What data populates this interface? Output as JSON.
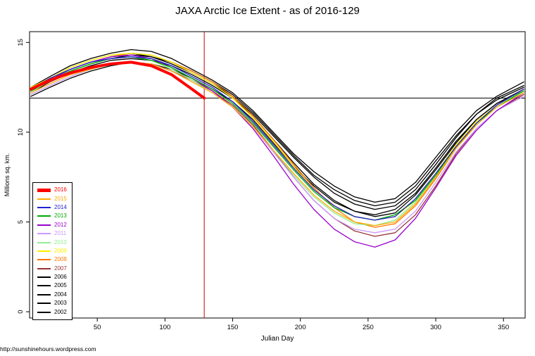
{
  "page": {
    "title": "JAXA Arctic Ice Extent - as of 2016-129",
    "footer_url": "http://sunshinehours.wordpress.com"
  },
  "chart_data": {
    "type": "line",
    "title": "JAXA Arctic Ice Extent - as of 2016-129",
    "xlabel": "Julian Day",
    "ylabel": "Millions sq. km.",
    "xlim": [
      0,
      366
    ],
    "ylim": [
      0,
      15
    ],
    "x_ticks": [
      50,
      100,
      150,
      200,
      250,
      300,
      350
    ],
    "y_ticks": [
      0,
      5,
      10,
      15
    ],
    "grid": false,
    "legend_position": "left-bottom",
    "reference_lines": {
      "horizontal_y": 11.9,
      "horizontal_color": "#000000",
      "vertical_x": 129,
      "vertical_color": "#cc0000"
    },
    "x": [
      1,
      15,
      30,
      45,
      60,
      75,
      90,
      105,
      120,
      135,
      150,
      165,
      180,
      195,
      210,
      225,
      240,
      255,
      270,
      285,
      300,
      315,
      330,
      345,
      365
    ],
    "series": [
      {
        "name": "2016",
        "color": "#ff0000",
        "width": 4,
        "x": [
          1,
          15,
          30,
          45,
          60,
          75,
          90,
          105,
          120,
          129
        ],
        "values": [
          12.4,
          12.9,
          13.3,
          13.6,
          13.8,
          13.9,
          13.7,
          13.2,
          12.4,
          11.9
        ]
      },
      {
        "name": "2015",
        "color": "#ffaa00",
        "width": 1.3,
        "values": [
          12.2,
          12.7,
          13.2,
          13.5,
          13.8,
          13.9,
          13.8,
          13.4,
          12.8,
          12.2,
          11.4,
          10.3,
          9.0,
          7.7,
          6.5,
          5.6,
          5.0,
          4.8,
          5.0,
          6.0,
          7.5,
          9.1,
          10.4,
          11.4,
          12.2
        ]
      },
      {
        "name": "2014",
        "color": "#2222cc",
        "width": 1.3,
        "values": [
          12.4,
          13.0,
          13.5,
          13.9,
          14.1,
          14.2,
          14.1,
          13.7,
          13.1,
          12.5,
          11.7,
          10.6,
          9.3,
          8.0,
          6.8,
          5.9,
          5.3,
          5.1,
          5.3,
          6.3,
          7.7,
          9.2,
          10.5,
          11.5,
          12.4
        ]
      },
      {
        "name": "2013",
        "color": "#00aa00",
        "width": 1.3,
        "values": [
          12.3,
          12.9,
          13.4,
          13.8,
          14.1,
          14.2,
          14.0,
          13.6,
          13.0,
          12.4,
          11.6,
          10.5,
          9.2,
          7.9,
          6.7,
          5.8,
          5.3,
          5.1,
          5.4,
          6.2,
          7.6,
          9.2,
          10.5,
          11.4,
          12.3
        ]
      },
      {
        "name": "2012",
        "color": "#9900cc",
        "width": 1.3,
        "values": [
          12.4,
          12.9,
          13.5,
          13.9,
          14.2,
          14.3,
          14.1,
          13.6,
          13.0,
          12.3,
          11.4,
          10.2,
          8.7,
          7.1,
          5.7,
          4.6,
          3.9,
          3.6,
          4.0,
          5.2,
          6.9,
          8.7,
          10.1,
          11.2,
          12.2
        ]
      },
      {
        "name": "2011",
        "color": "#cc99ff",
        "width": 1.3,
        "values": [
          12.1,
          12.6,
          13.1,
          13.5,
          13.8,
          13.9,
          13.8,
          13.4,
          12.8,
          12.2,
          11.4,
          10.3,
          8.9,
          7.5,
          6.2,
          5.2,
          4.6,
          4.4,
          4.6,
          5.6,
          7.2,
          8.9,
          10.2,
          11.2,
          12.0
        ]
      },
      {
        "name": "2010",
        "color": "#90ee90",
        "width": 1.3,
        "values": [
          12.2,
          12.9,
          13.4,
          13.8,
          14.1,
          14.2,
          14.0,
          13.5,
          12.9,
          12.2,
          11.4,
          10.3,
          9.0,
          7.6,
          6.4,
          5.5,
          4.9,
          4.8,
          5.1,
          6.1,
          7.6,
          9.2,
          10.5,
          11.5,
          12.3
        ]
      },
      {
        "name": "2009",
        "color": "#ffee00",
        "width": 1.3,
        "values": [
          12.5,
          13.0,
          13.6,
          14.0,
          14.3,
          14.4,
          14.3,
          13.9,
          13.3,
          12.7,
          11.9,
          10.8,
          9.5,
          8.1,
          6.8,
          5.9,
          5.3,
          5.1,
          5.3,
          6.2,
          7.7,
          9.3,
          10.6,
          11.5,
          12.3
        ]
      },
      {
        "name": "2008",
        "color": "#ff7700",
        "width": 1.3,
        "values": [
          12.4,
          12.9,
          13.5,
          13.9,
          14.2,
          14.4,
          14.3,
          13.9,
          13.4,
          12.8,
          12.0,
          10.9,
          9.6,
          8.2,
          6.9,
          5.8,
          5.0,
          4.7,
          4.9,
          5.9,
          7.4,
          9.1,
          10.5,
          11.5,
          12.4
        ]
      },
      {
        "name": "2007",
        "color": "#993333",
        "width": 1.3,
        "values": [
          12.3,
          12.8,
          13.3,
          13.6,
          13.8,
          13.9,
          13.8,
          13.4,
          12.9,
          12.3,
          11.5,
          10.4,
          9.0,
          7.5,
          6.2,
          5.2,
          4.5,
          4.2,
          4.4,
          5.4,
          7.0,
          8.8,
          10.2,
          11.2,
          12.1
        ]
      },
      {
        "name": "2006",
        "color": "#000000",
        "width": 1.3,
        "values": [
          12.0,
          12.5,
          13.0,
          13.4,
          13.7,
          13.9,
          13.8,
          13.5,
          13.0,
          12.4,
          11.7,
          10.7,
          9.4,
          8.1,
          7.0,
          6.1,
          5.6,
          5.4,
          5.7,
          6.6,
          8.0,
          9.5,
          10.7,
          11.6,
          12.4
        ]
      },
      {
        "name": "2005",
        "color": "#000000",
        "width": 1.3,
        "values": [
          12.2,
          12.8,
          13.3,
          13.7,
          14.0,
          14.1,
          14.0,
          13.7,
          13.2,
          12.6,
          11.9,
          10.9,
          9.6,
          8.3,
          7.1,
          6.2,
          5.6,
          5.3,
          5.5,
          6.5,
          7.9,
          9.4,
          10.7,
          11.6,
          12.3
        ]
      },
      {
        "name": "2004",
        "color": "#000000",
        "width": 1.3,
        "values": [
          12.3,
          12.9,
          13.4,
          13.8,
          14.1,
          14.3,
          14.2,
          13.9,
          13.4,
          12.8,
          12.1,
          11.1,
          9.9,
          8.7,
          7.6,
          6.8,
          6.2,
          5.9,
          6.1,
          7.0,
          8.4,
          9.8,
          11.0,
          11.8,
          12.5
        ]
      },
      {
        "name": "2003",
        "color": "#000000",
        "width": 1.3,
        "values": [
          12.5,
          13.1,
          13.7,
          14.1,
          14.4,
          14.6,
          14.5,
          14.1,
          13.5,
          12.9,
          12.2,
          11.2,
          10.0,
          8.8,
          7.8,
          7.0,
          6.4,
          6.1,
          6.3,
          7.2,
          8.6,
          10.0,
          11.2,
          12.0,
          12.8
        ]
      },
      {
        "name": "2002",
        "color": "#000000",
        "width": 1.3,
        "values": [
          12.4,
          13.0,
          13.5,
          13.9,
          14.2,
          14.4,
          14.2,
          13.8,
          13.3,
          12.7,
          12.0,
          11.0,
          9.8,
          8.6,
          7.5,
          6.6,
          6.0,
          5.7,
          5.9,
          6.8,
          8.2,
          9.7,
          11.0,
          11.9,
          12.6
        ]
      }
    ]
  }
}
